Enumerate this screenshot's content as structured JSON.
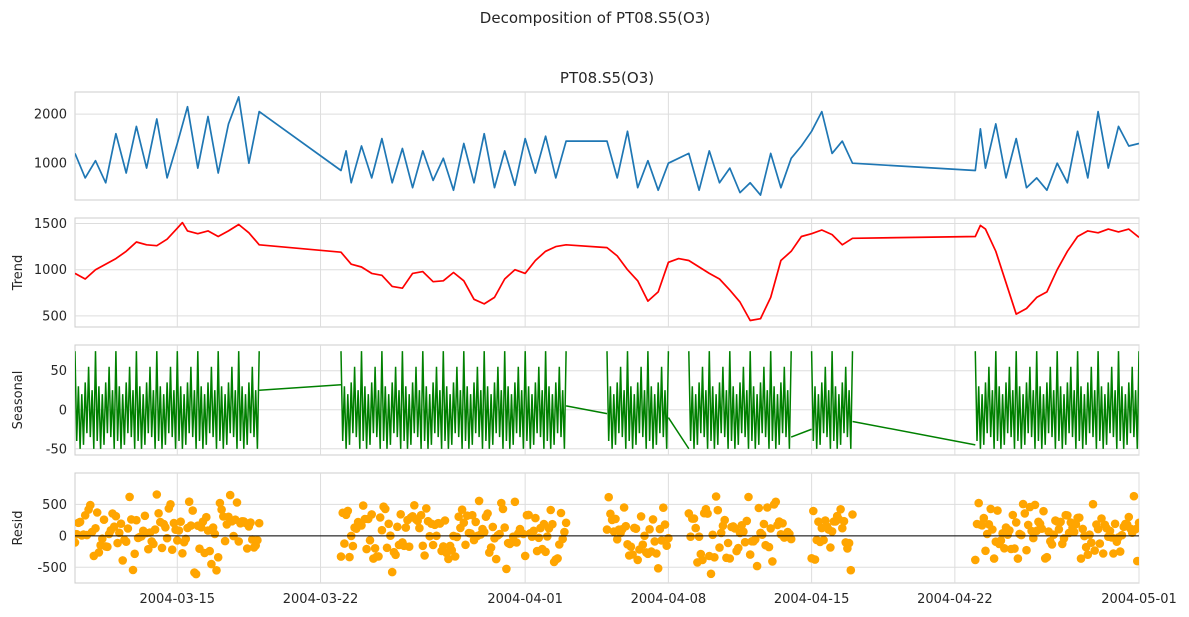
{
  "figure": {
    "suptitle": "Decomposition of PT08.S5(O3)"
  },
  "colors": {
    "observed": "#1f77b4",
    "trend": "#ff0000",
    "seasonal": "#008000",
    "resid": "#ffa500",
    "zero_line": "#000000"
  },
  "chart_data": [
    {
      "type": "line",
      "panel": "observed",
      "title": "PT08.S5(O3)",
      "ylabel": "",
      "xlim": [
        "2004-03-10",
        "2004-05-01"
      ],
      "ylim": [
        250,
        2450
      ],
      "yticks": [
        1000,
        2000
      ],
      "x_range": [
        "2004-03-10",
        "2004-05-01"
      ],
      "gaps_interpolated": [
        [
          "2004-03-18",
          "2004-03-23"
        ],
        [
          "2004-04-03",
          "2004-04-05"
        ],
        [
          "2004-04-08",
          "2004-04-10"
        ],
        [
          "2004-04-14",
          "2004-04-15"
        ],
        [
          "2004-04-17",
          "2004-04-23"
        ]
      ],
      "series": [
        {
          "values": [
            [
              "2004-03-10",
              1200
            ],
            [
              "2004-03-10T12",
              700
            ],
            [
              "2004-03-11",
              1050
            ],
            [
              "2004-03-11T12",
              600
            ],
            [
              "2004-03-12",
              1600
            ],
            [
              "2004-03-12T12",
              800
            ],
            [
              "2004-03-13",
              1750
            ],
            [
              "2004-03-13T12",
              900
            ],
            [
              "2004-03-14",
              1900
            ],
            [
              "2004-03-14T12",
              700
            ],
            [
              "2004-03-15",
              1400
            ],
            [
              "2004-03-15T12",
              2150
            ],
            [
              "2004-03-16",
              900
            ],
            [
              "2004-03-16T12",
              1950
            ],
            [
              "2004-03-17",
              800
            ],
            [
              "2004-03-17T12",
              1800
            ],
            [
              "2004-03-18",
              2350
            ],
            [
              "2004-03-18T12",
              1000
            ],
            [
              "2004-03-19",
              2050
            ],
            [
              "2004-03-23",
              850
            ],
            [
              "2004-03-23T06",
              1250
            ],
            [
              "2004-03-23T12",
              600
            ],
            [
              "2004-03-24",
              1350
            ],
            [
              "2004-03-24T12",
              700
            ],
            [
              "2004-03-25",
              1500
            ],
            [
              "2004-03-25T12",
              600
            ],
            [
              "2004-03-26",
              1300
            ],
            [
              "2004-03-26T12",
              500
            ],
            [
              "2004-03-27",
              1250
            ],
            [
              "2004-03-27T12",
              650
            ],
            [
              "2004-03-28",
              1100
            ],
            [
              "2004-03-28T12",
              450
            ],
            [
              "2004-03-29",
              1400
            ],
            [
              "2004-03-29T12",
              600
            ],
            [
              "2004-03-30",
              1600
            ],
            [
              "2004-03-30T12",
              500
            ],
            [
              "2004-03-31",
              1250
            ],
            [
              "2004-03-31T12",
              550
            ],
            [
              "2004-04-01",
              1500
            ],
            [
              "2004-04-01T12",
              800
            ],
            [
              "2004-04-02",
              1550
            ],
            [
              "2004-04-02T12",
              700
            ],
            [
              "2004-04-03",
              1450
            ],
            [
              "2004-04-05",
              1450
            ],
            [
              "2004-04-05T12",
              700
            ],
            [
              "2004-04-06",
              1650
            ],
            [
              "2004-04-06T12",
              500
            ],
            [
              "2004-04-07",
              1050
            ],
            [
              "2004-04-07T12",
              450
            ],
            [
              "2004-04-08",
              1000
            ],
            [
              "2004-04-09",
              1200
            ],
            [
              "2004-04-09T12",
              450
            ],
            [
              "2004-04-10",
              1250
            ],
            [
              "2004-04-10T12",
              600
            ],
            [
              "2004-04-11",
              900
            ],
            [
              "2004-04-11T12",
              400
            ],
            [
              "2004-04-12",
              600
            ],
            [
              "2004-04-12T12",
              350
            ],
            [
              "2004-04-13",
              1200
            ],
            [
              "2004-04-13T12",
              500
            ],
            [
              "2004-04-14",
              1100
            ],
            [
              "2004-04-14T12",
              1350
            ],
            [
              "2004-04-15",
              1650
            ],
            [
              "2004-04-15T12",
              2050
            ],
            [
              "2004-04-16",
              1200
            ],
            [
              "2004-04-16T12",
              1450
            ],
            [
              "2004-04-17",
              1000
            ],
            [
              "2004-04-23",
              850
            ],
            [
              "2004-04-23T06",
              1700
            ],
            [
              "2004-04-23T12",
              900
            ],
            [
              "2004-04-24",
              1800
            ],
            [
              "2004-04-24T12",
              700
            ],
            [
              "2004-04-25",
              1500
            ],
            [
              "2004-04-25T12",
              500
            ],
            [
              "2004-04-26",
              700
            ],
            [
              "2004-04-26T12",
              450
            ],
            [
              "2004-04-27",
              1000
            ],
            [
              "2004-04-27T12",
              600
            ],
            [
              "2004-04-28",
              1650
            ],
            [
              "2004-04-28T12",
              700
            ],
            [
              "2004-04-29",
              2050
            ],
            [
              "2004-04-29T12",
              900
            ],
            [
              "2004-04-30",
              1750
            ],
            [
              "2004-04-30T12",
              1350
            ],
            [
              "2004-05-01",
              1400
            ]
          ]
        }
      ]
    },
    {
      "type": "line",
      "panel": "trend",
      "title": "",
      "ylabel": "Trend",
      "xlim": [
        "2004-03-10",
        "2004-05-01"
      ],
      "ylim": [
        380,
        1560
      ],
      "yticks": [
        500,
        1000,
        1500
      ],
      "series": [
        {
          "values": [
            [
              "2004-03-10",
              960
            ],
            [
              "2004-03-10T12",
              900
            ],
            [
              "2004-03-11",
              1000
            ],
            [
              "2004-03-12",
              1120
            ],
            [
              "2004-03-12T12",
              1200
            ],
            [
              "2004-03-13",
              1300
            ],
            [
              "2004-03-13T12",
              1270
            ],
            [
              "2004-03-14",
              1260
            ],
            [
              "2004-03-14T12",
              1330
            ],
            [
              "2004-03-15",
              1450
            ],
            [
              "2004-03-15T06",
              1510
            ],
            [
              "2004-03-15T12",
              1420
            ],
            [
              "2004-03-16",
              1390
            ],
            [
              "2004-03-16T12",
              1420
            ],
            [
              "2004-03-17",
              1360
            ],
            [
              "2004-03-17T12",
              1420
            ],
            [
              "2004-03-18",
              1490
            ],
            [
              "2004-03-18T12",
              1400
            ],
            [
              "2004-03-19",
              1270
            ],
            [
              "2004-03-23",
              1190
            ],
            [
              "2004-03-23T12",
              1060
            ],
            [
              "2004-03-24",
              1030
            ],
            [
              "2004-03-24T12",
              960
            ],
            [
              "2004-03-25",
              940
            ],
            [
              "2004-03-25T12",
              820
            ],
            [
              "2004-03-26",
              800
            ],
            [
              "2004-03-26T12",
              960
            ],
            [
              "2004-03-27",
              980
            ],
            [
              "2004-03-27T12",
              870
            ],
            [
              "2004-03-28",
              880
            ],
            [
              "2004-03-28T12",
              970
            ],
            [
              "2004-03-29",
              880
            ],
            [
              "2004-03-29T12",
              680
            ],
            [
              "2004-03-30",
              630
            ],
            [
              "2004-03-30T12",
              700
            ],
            [
              "2004-03-31",
              900
            ],
            [
              "2004-03-31T12",
              1000
            ],
            [
              "2004-04-01",
              960
            ],
            [
              "2004-04-01T12",
              1100
            ],
            [
              "2004-04-02",
              1200
            ],
            [
              "2004-04-02T12",
              1250
            ],
            [
              "2004-04-03",
              1270
            ],
            [
              "2004-04-05",
              1240
            ],
            [
              "2004-04-05T12",
              1150
            ],
            [
              "2004-04-06",
              1000
            ],
            [
              "2004-04-06T12",
              880
            ],
            [
              "2004-04-07",
              660
            ],
            [
              "2004-04-07T12",
              760
            ],
            [
              "2004-04-08",
              1080
            ],
            [
              "2004-04-08T12",
              1120
            ],
            [
              "2004-04-09",
              1100
            ],
            [
              "2004-04-10",
              960
            ],
            [
              "2004-04-10T12",
              900
            ],
            [
              "2004-04-11",
              780
            ],
            [
              "2004-04-11T12",
              650
            ],
            [
              "2004-04-12",
              450
            ],
            [
              "2004-04-12T12",
              470
            ],
            [
              "2004-04-13",
              700
            ],
            [
              "2004-04-13T12",
              1100
            ],
            [
              "2004-04-14",
              1200
            ],
            [
              "2004-04-14T12",
              1360
            ],
            [
              "2004-04-15",
              1390
            ],
            [
              "2004-04-15T12",
              1430
            ],
            [
              "2004-04-16",
              1380
            ],
            [
              "2004-04-16T12",
              1270
            ],
            [
              "2004-04-17",
              1340
            ],
            [
              "2004-04-23",
              1360
            ],
            [
              "2004-04-23T06",
              1480
            ],
            [
              "2004-04-23T12",
              1440
            ],
            [
              "2004-04-24",
              1200
            ],
            [
              "2004-04-24T12",
              860
            ],
            [
              "2004-04-25",
              520
            ],
            [
              "2004-04-25T12",
              580
            ],
            [
              "2004-04-26",
              700
            ],
            [
              "2004-04-26T12",
              760
            ],
            [
              "2004-04-27",
              1000
            ],
            [
              "2004-04-27T12",
              1200
            ],
            [
              "2004-04-28",
              1360
            ],
            [
              "2004-04-28T12",
              1420
            ],
            [
              "2004-04-29",
              1400
            ],
            [
              "2004-04-29T12",
              1440
            ],
            [
              "2004-04-30",
              1410
            ],
            [
              "2004-04-30T12",
              1440
            ],
            [
              "2004-05-01",
              1350
            ]
          ]
        }
      ]
    },
    {
      "type": "line",
      "panel": "seasonal",
      "title": "",
      "ylabel": "Seasonal",
      "xlim": [
        "2004-03-10",
        "2004-05-01"
      ],
      "ylim": [
        -58,
        83
      ],
      "yticks": [
        -50,
        0,
        50
      ],
      "segments_with_daily_cycle": [
        [
          "2004-03-10",
          "2004-03-19"
        ],
        [
          "2004-03-23",
          "2004-04-03"
        ],
        [
          "2004-04-05",
          "2004-04-08"
        ],
        [
          "2004-04-09",
          "2004-04-14"
        ],
        [
          "2004-04-15",
          "2004-04-17"
        ],
        [
          "2004-04-23",
          "2004-05-01"
        ]
      ],
      "daily_cycle_values": [
        75,
        -40,
        30,
        -50,
        20,
        -45,
        35,
        -30,
        55,
        -35,
        25,
        -50
      ],
      "straight_connectors": [
        {
          "from": [
            "2004-03-19",
            25
          ],
          "to": [
            "2004-03-23",
            32
          ]
        },
        {
          "from": [
            "2004-04-03",
            5
          ],
          "to": [
            "2004-04-05",
            -5
          ]
        },
        {
          "from": [
            "2004-04-08",
            -10
          ],
          "to": [
            "2004-04-09",
            -50
          ]
        },
        {
          "from": [
            "2004-04-14",
            -35
          ],
          "to": [
            "2004-04-15",
            -25
          ]
        },
        {
          "from": [
            "2004-04-17",
            -15
          ],
          "to": [
            "2004-04-23",
            -45
          ]
        }
      ]
    },
    {
      "type": "scatter",
      "panel": "resid",
      "title": "",
      "ylabel": "Resid",
      "xlim": [
        "2004-03-10",
        "2004-05-01"
      ],
      "ylim": [
        -750,
        1000
      ],
      "yticks": [
        -500,
        0,
        500
      ],
      "hline": 0,
      "segments_with_points": [
        [
          "2004-03-10",
          "2004-03-19"
        ],
        [
          "2004-03-23",
          "2004-04-03"
        ],
        [
          "2004-04-05",
          "2004-04-08"
        ],
        [
          "2004-04-09",
          "2004-04-14"
        ],
        [
          "2004-04-15",
          "2004-04-17"
        ],
        [
          "2004-04-23",
          "2004-05-01"
        ]
      ],
      "spread_range": [
        -650,
        850
      ]
    }
  ],
  "x_axis": {
    "ticks": [
      {
        "date": "2004-03-15",
        "label": "2004-03-15"
      },
      {
        "date": "2004-03-22",
        "label": "2004-03-22"
      },
      {
        "date": "2004-04-01",
        "label": "2004-04-01"
      },
      {
        "date": "2004-04-08",
        "label": "2004-04-08"
      },
      {
        "date": "2004-04-15",
        "label": "2004-04-15"
      },
      {
        "date": "2004-04-22",
        "label": "2004-04-22"
      },
      {
        "date": "2004-05-01",
        "label": "2004-05-01"
      }
    ]
  }
}
